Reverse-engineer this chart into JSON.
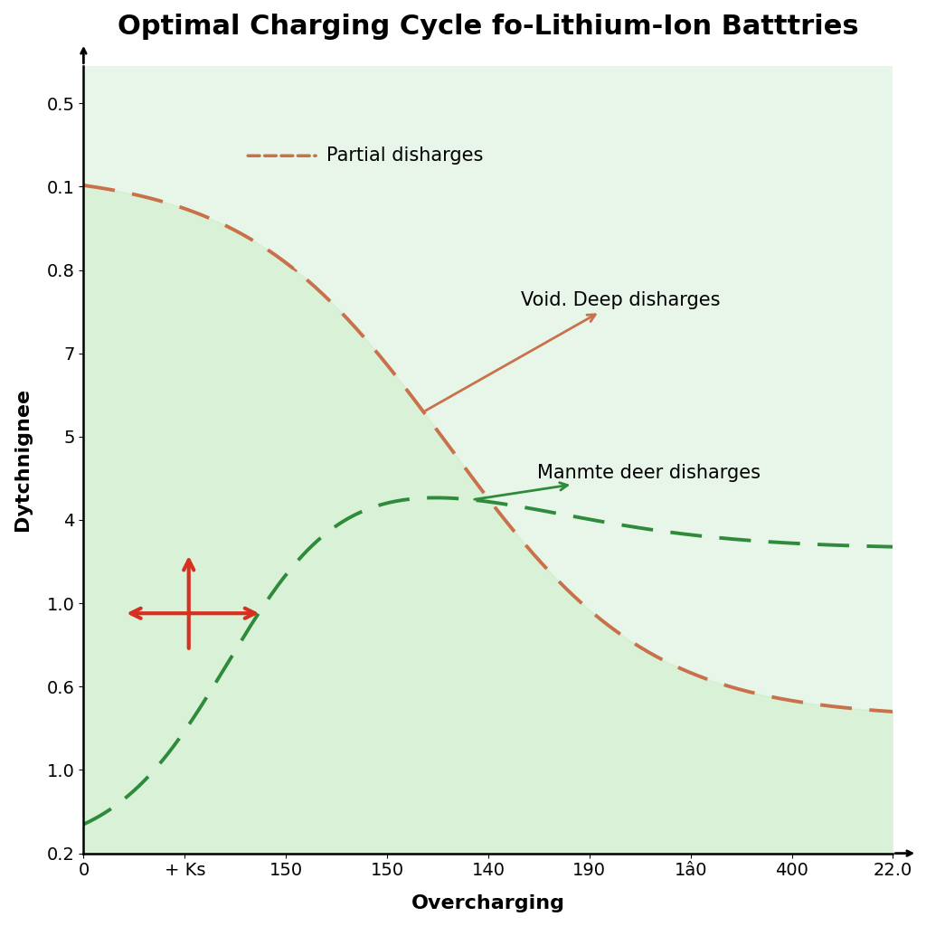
{
  "title": "Optimal Charging Cycle fo-Lithium-Ion Batttries",
  "xlabel": "Overcharging",
  "ylabel": "Dytchnignee",
  "background_color": "#ffffff",
  "plot_bg_color": "#e8f5e9",
  "xtick_labels": [
    "0",
    "+ Ks",
    "150",
    "150",
    "140",
    "190",
    "1$0",
    "400",
    "22.0"
  ],
  "ytick_labels": [
    "0.5",
    "0.1",
    "0.8",
    "7",
    "5",
    "4",
    "1.0",
    "0.6",
    "1.0",
    "0.2"
  ],
  "line1_color": "#c8714a",
  "line2_color": "#2e8b3a",
  "arrow_color": "#d63020",
  "annotation1": "Partial disharges",
  "annotation2": "Void. Deep disharges",
  "annotation3": "Manmte deer disharges",
  "title_fontsize": 22,
  "label_fontsize": 16,
  "tick_fontsize": 14,
  "annot_fontsize": 15
}
